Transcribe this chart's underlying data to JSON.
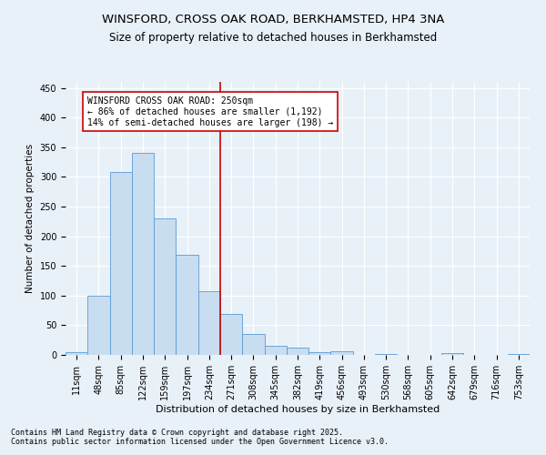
{
  "title1": "WINSFORD, CROSS OAK ROAD, BERKHAMSTED, HP4 3NA",
  "title2": "Size of property relative to detached houses in Berkhamsted",
  "xlabel": "Distribution of detached houses by size in Berkhamsted",
  "ylabel": "Number of detached properties",
  "bar_labels": [
    "11sqm",
    "48sqm",
    "85sqm",
    "122sqm",
    "159sqm",
    "197sqm",
    "234sqm",
    "271sqm",
    "308sqm",
    "345sqm",
    "382sqm",
    "419sqm",
    "456sqm",
    "493sqm",
    "530sqm",
    "568sqm",
    "605sqm",
    "642sqm",
    "679sqm",
    "716sqm",
    "753sqm"
  ],
  "bar_values": [
    4,
    100,
    308,
    340,
    230,
    168,
    107,
    69,
    35,
    15,
    13,
    5,
    6,
    0,
    2,
    0,
    0,
    3,
    0,
    0,
    2
  ],
  "bar_color": "#c8ddf0",
  "bar_edge_color": "#5b9bd5",
  "vline_x_index": 6.5,
  "annotation_text_line1": "WINSFORD CROSS OAK ROAD: 250sqm",
  "annotation_text_line2": "← 86% of detached houses are smaller (1,192)",
  "annotation_text_line3": "14% of semi-detached houses are larger (198) →",
  "annotation_box_color": "#ffffff",
  "annotation_box_edge_color": "#cc0000",
  "vline_color": "#cc0000",
  "footnote": "Contains HM Land Registry data © Crown copyright and database right 2025.\nContains public sector information licensed under the Open Government Licence v3.0.",
  "ylim": [
    0,
    460
  ],
  "yticks": [
    0,
    50,
    100,
    150,
    200,
    250,
    300,
    350,
    400,
    450
  ],
  "background_color": "#e8f0f8",
  "grid_color": "#ffffff",
  "title1_fontsize": 9.5,
  "title2_fontsize": 8.5,
  "xlabel_fontsize": 8,
  "ylabel_fontsize": 7.5,
  "tick_fontsize": 7,
  "annot_fontsize": 7,
  "footnote_fontsize": 6
}
